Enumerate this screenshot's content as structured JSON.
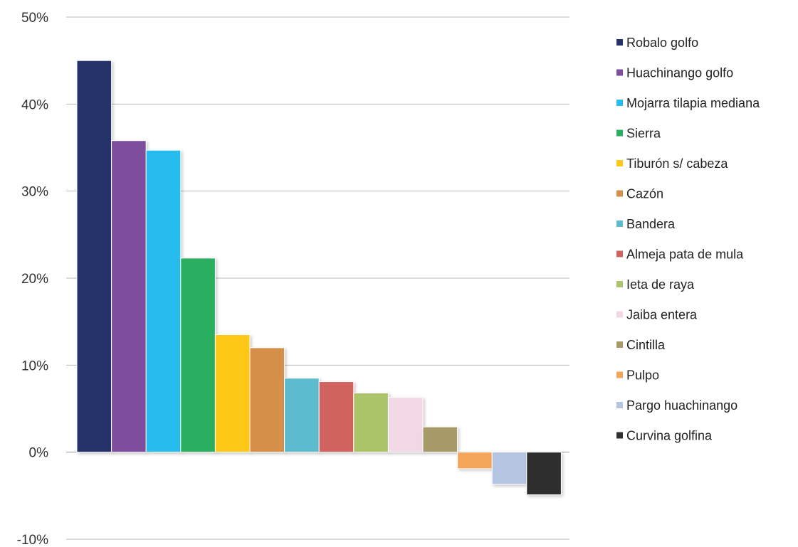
{
  "chart_data": {
    "type": "bar",
    "title": "",
    "xlabel": "",
    "ylabel": "",
    "ylim": [
      -10,
      50
    ],
    "y_ticks": [
      {
        "value": 50,
        "label": "50%"
      },
      {
        "value": 40,
        "label": "40%"
      },
      {
        "value": 30,
        "label": "30%"
      },
      {
        "value": 20,
        "label": "20%"
      },
      {
        "value": 10,
        "label": "10%"
      },
      {
        "value": 0,
        "label": "0%"
      },
      {
        "value": -10,
        "label": "-10%"
      }
    ],
    "grid": true,
    "legend_position": "right",
    "negative_tick_color": "#e03030",
    "series": [
      {
        "name": "Robalo golfo",
        "value": 45.0,
        "color": "#26336b"
      },
      {
        "name": "Huachinango golfo",
        "value": 35.8,
        "color": "#7e4e9e"
      },
      {
        "name": "Mojarra tilapia mediana",
        "value": 34.7,
        "color": "#27bced"
      },
      {
        "name": "Sierra",
        "value": 22.3,
        "color": "#2aae60"
      },
      {
        "name": "Tiburón s/ cabeza",
        "value": 13.5,
        "color": "#fec816"
      },
      {
        "name": "Cazón",
        "value": 12.0,
        "color": "#d68f49"
      },
      {
        "name": "Bandera",
        "value": 8.5,
        "color": "#5dbbd0"
      },
      {
        "name": "Almeja pata de mula",
        "value": 8.1,
        "color": "#d0635f"
      },
      {
        "name": "Ieta de raya",
        "value": 6.8,
        "color": "#abc46a"
      },
      {
        "name": "Jaiba entera",
        "value": 6.3,
        "color": "#f2d8e6"
      },
      {
        "name": "Cintilla",
        "value": 2.9,
        "color": "#a79a68"
      },
      {
        "name": "Pulpo",
        "value": -1.9,
        "color": "#f5a55a"
      },
      {
        "name": "Pargo huachinango",
        "value": -3.7,
        "color": "#b5c4e0"
      },
      {
        "name": "Curvina golfina",
        "value": -4.9,
        "color": "#2f2f2f"
      }
    ]
  }
}
